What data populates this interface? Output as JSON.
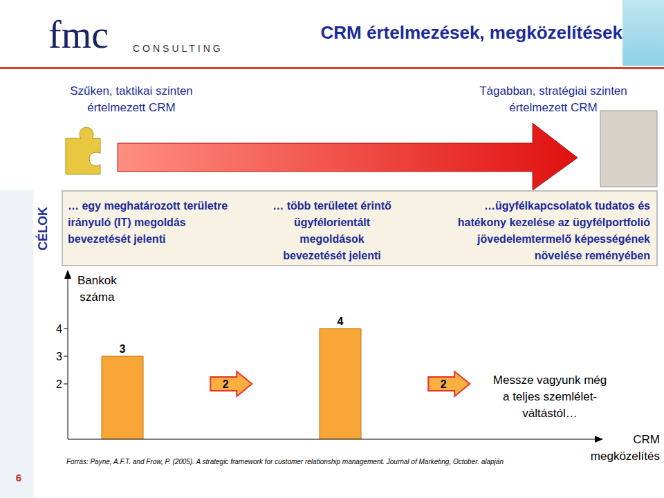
{
  "header": {
    "logo": "fmc",
    "logo_sub": "CONSULTING",
    "title": "CRM értelmezések, megközelítések"
  },
  "scale_left": [
    "Szűken, taktikai szinten",
    "értelmezett CRM"
  ],
  "scale_right": [
    "Tágabban, stratégiai szinten",
    "értelmezett CRM"
  ],
  "goals": {
    "label": "CÉLOK",
    "items": [
      [
        "… egy meghatározott területre",
        "irányuló (IT) megoldás",
        "bevezetését jelenti"
      ],
      [
        "… több területet érintő",
        "ügyfélorientált",
        "megoldások",
        "bevezetését jelenti"
      ],
      [
        "…ügyfélkapcsolatok tudatos és",
        "hatékony kezelése az ügyfélportfolió",
        "jövedelemtermelő képességének",
        "növelése reményében"
      ]
    ]
  },
  "chart_data": {
    "type": "bar",
    "y_label": [
      "Bankok",
      "száma"
    ],
    "x_label": [
      "CRM",
      "megközelítés"
    ],
    "categories": [
      null,
      null,
      null,
      null
    ],
    "series": [
      {
        "type": "bar",
        "color": "#f7a535",
        "values": [
          3,
          null,
          4,
          null
        ]
      },
      {
        "type": "scatter",
        "marker": "arrow",
        "color": "#f9b040",
        "values": [
          null,
          2,
          null,
          2
        ]
      }
    ],
    "ylim": [
      0,
      6
    ],
    "yticks": [
      2,
      3,
      4
    ],
    "data_labels": true,
    "tick_labels": "y",
    "annotation": [
      "Messze vagyunk még",
      "a teljes szemlélet-",
      "váltástól…"
    ]
  },
  "footer": {
    "source": "Forrás: Payne, A.F.T. and Frow, P. (2005). A strategic framework for customer relationship management. Journal of Marketing, October. alapján",
    "page": "6"
  }
}
